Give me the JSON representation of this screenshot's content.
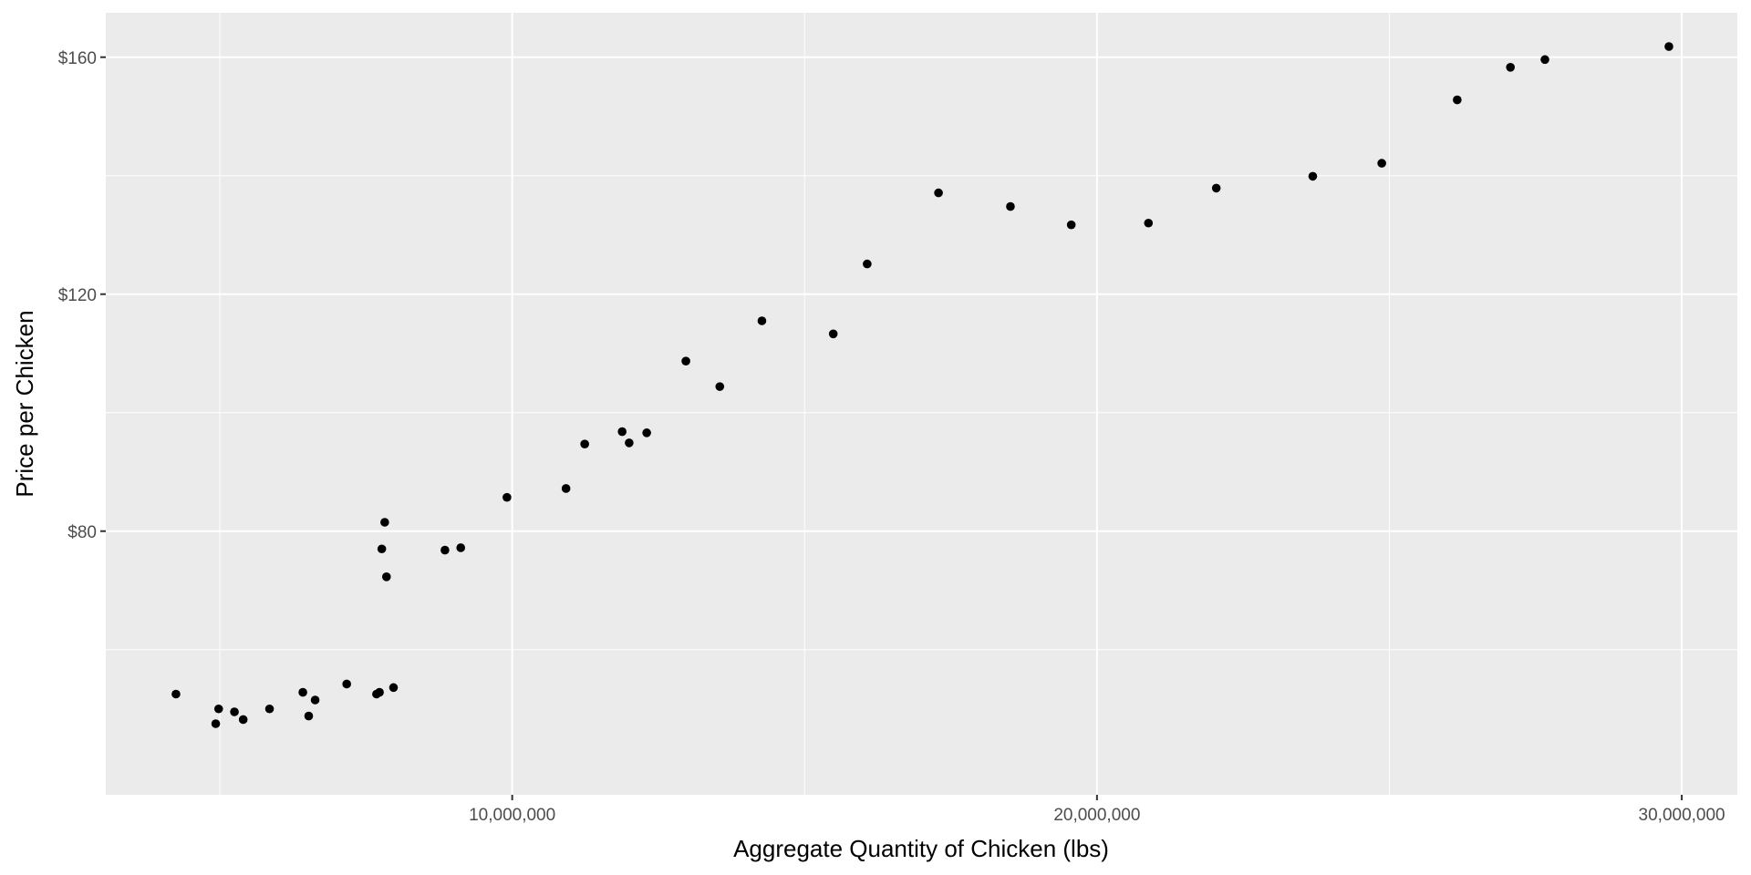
{
  "chart_data": {
    "type": "scatter",
    "title": "",
    "xlabel": "Aggregate Quantity of Chicken (lbs)",
    "ylabel": "Price per Chicken",
    "xlim": [
      3050000,
      30950000
    ],
    "ylim": [
      35.5,
      167.5
    ],
    "x_ticks": [
      {
        "value": 10000000,
        "label": "10,000,000"
      },
      {
        "value": 20000000,
        "label": "20,000,000"
      },
      {
        "value": 30000000,
        "label": "30,000,000"
      }
    ],
    "x_minor": [
      5000000,
      15000000,
      25000000
    ],
    "y_ticks": [
      {
        "value": 80,
        "label": "$80"
      },
      {
        "value": 120,
        "label": "$120"
      },
      {
        "value": 160,
        "label": "$160"
      }
    ],
    "y_minor": [
      60,
      100,
      140
    ],
    "grid": true,
    "background": "#ebebeb",
    "grid_color": "#ffffff",
    "point_color": "#000000",
    "points": [
      {
        "x": 4250000,
        "y": 52.5
      },
      {
        "x": 4930000,
        "y": 47.5
      },
      {
        "x": 4980000,
        "y": 50.0
      },
      {
        "x": 5250000,
        "y": 49.5
      },
      {
        "x": 5400000,
        "y": 48.2
      },
      {
        "x": 5850000,
        "y": 50.0
      },
      {
        "x": 6420000,
        "y": 52.8
      },
      {
        "x": 6520000,
        "y": 48.8
      },
      {
        "x": 6630000,
        "y": 51.5
      },
      {
        "x": 7170000,
        "y": 54.2
      },
      {
        "x": 7680000,
        "y": 52.5
      },
      {
        "x": 7730000,
        "y": 52.8
      },
      {
        "x": 7770000,
        "y": 77.0
      },
      {
        "x": 7820000,
        "y": 81.5
      },
      {
        "x": 7850000,
        "y": 72.3
      },
      {
        "x": 7970000,
        "y": 53.6
      },
      {
        "x": 8850000,
        "y": 76.8
      },
      {
        "x": 9120000,
        "y": 77.2
      },
      {
        "x": 9910000,
        "y": 85.7
      },
      {
        "x": 10920000,
        "y": 87.2
      },
      {
        "x": 11240000,
        "y": 94.7
      },
      {
        "x": 11880000,
        "y": 96.8
      },
      {
        "x": 12000000,
        "y": 94.9
      },
      {
        "x": 12300000,
        "y": 96.6
      },
      {
        "x": 12970000,
        "y": 108.7
      },
      {
        "x": 13550000,
        "y": 104.4
      },
      {
        "x": 14270000,
        "y": 115.5
      },
      {
        "x": 15490000,
        "y": 113.3
      },
      {
        "x": 16070000,
        "y": 125.1
      },
      {
        "x": 17290000,
        "y": 137.1
      },
      {
        "x": 18520000,
        "y": 134.8
      },
      {
        "x": 19560000,
        "y": 131.7
      },
      {
        "x": 20880000,
        "y": 132.0
      },
      {
        "x": 22040000,
        "y": 137.9
      },
      {
        "x": 23690000,
        "y": 139.9
      },
      {
        "x": 24870000,
        "y": 142.1
      },
      {
        "x": 26160000,
        "y": 152.8
      },
      {
        "x": 27070000,
        "y": 158.3
      },
      {
        "x": 27660000,
        "y": 159.6
      },
      {
        "x": 29780000,
        "y": 161.8
      }
    ]
  }
}
